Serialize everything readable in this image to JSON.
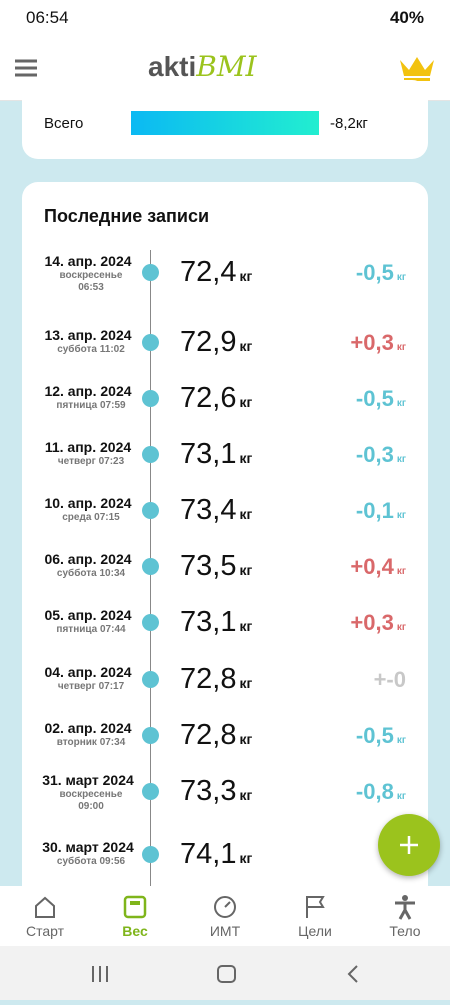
{
  "status": {
    "time": "06:54",
    "battery": "40%"
  },
  "header": {
    "logo_main": "akti",
    "logo_accent": "BMI"
  },
  "summary": {
    "label": "Всего",
    "value": "-8,2кг"
  },
  "records": {
    "title": "Последние записи",
    "entries": [
      {
        "date": "14. апр. 2024",
        "sub": "воскресенье 06:53",
        "weight": "72,4",
        "unit": "кг",
        "change": "-0,5",
        "change_unit": "кг",
        "color": "#5ec3d3"
      },
      {
        "date": "13. апр. 2024",
        "sub": "суббота 11:02",
        "weight": "72,9",
        "unit": "кг",
        "change": "+0,3",
        "change_unit": "кг",
        "color": "#d9686a"
      },
      {
        "date": "12. апр. 2024",
        "sub": "пятница 07:59",
        "weight": "72,6",
        "unit": "кг",
        "change": "-0,5",
        "change_unit": "кг",
        "color": "#5ec3d3"
      },
      {
        "date": "11. апр. 2024",
        "sub": "четверг 07:23",
        "weight": "73,1",
        "unit": "кг",
        "change": "-0,3",
        "change_unit": "кг",
        "color": "#5ec3d3"
      },
      {
        "date": "10. апр. 2024",
        "sub": "среда 07:15",
        "weight": "73,4",
        "unit": "кг",
        "change": "-0,1",
        "change_unit": "кг",
        "color": "#5ec3d3"
      },
      {
        "date": "06. апр. 2024",
        "sub": "суббота 10:34",
        "weight": "73,5",
        "unit": "кг",
        "change": "+0,4",
        "change_unit": "кг",
        "color": "#d9686a"
      },
      {
        "date": "05. апр. 2024",
        "sub": "пятница 07:44",
        "weight": "73,1",
        "unit": "кг",
        "change": "+0,3",
        "change_unit": "кг",
        "color": "#d9686a"
      },
      {
        "date": "04. апр. 2024",
        "sub": "четверг 07:17",
        "weight": "72,8",
        "unit": "кг",
        "change": "+-0",
        "color": "#c8c8c8"
      },
      {
        "date": "02. апр. 2024",
        "sub": "вторник 07:34",
        "weight": "72,8",
        "unit": "кг",
        "change": "-0,5",
        "change_unit": "кг",
        "color": "#5ec3d3"
      },
      {
        "date": "31. март 2024",
        "sub": "воскресенье 09:00",
        "weight": "73,3",
        "unit": "кг",
        "change": "-0,8",
        "change_unit": "кг",
        "color": "#5ec3d3"
      },
      {
        "date": "30. март 2024",
        "sub": "суббота 09:56",
        "weight": "74,1",
        "unit": "кг",
        "change": "+",
        "color": "#c8c8c8"
      }
    ]
  },
  "nav": {
    "items": [
      "Старт",
      "Вес",
      "ИМТ",
      "Цели",
      "Тело"
    ],
    "active": 1
  }
}
